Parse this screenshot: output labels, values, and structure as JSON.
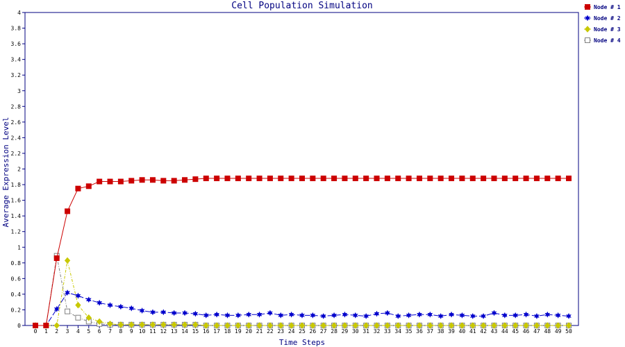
{
  "chart_data": {
    "type": "line",
    "title": "Cell Population Simulation",
    "xlabel": "Time Steps",
    "ylabel": "Average Expression Level",
    "xlim": [
      0,
      50
    ],
    "ylim": [
      0,
      4
    ],
    "yticks": [
      "0",
      "0.2",
      "0.4",
      "0.6",
      "0.8",
      "1",
      "1.2",
      "1.4",
      "1.6",
      "1.8",
      "2",
      "2.2",
      "2.4",
      "2.6",
      "2.8",
      "3",
      "3.2",
      "3.4",
      "3.6",
      "3.8",
      "4"
    ],
    "xticks": [
      "0",
      "1",
      "2",
      "3",
      "4",
      "5",
      "6",
      "7",
      "8",
      "9",
      "10",
      "11",
      "12",
      "13",
      "14",
      "15",
      "16",
      "17",
      "18",
      "19",
      "20",
      "21",
      "22",
      "23",
      "24",
      "25",
      "26",
      "27",
      "28",
      "29",
      "30",
      "31",
      "32",
      "33",
      "34",
      "35",
      "36",
      "37",
      "38",
      "39",
      "40",
      "41",
      "42",
      "43",
      "44",
      "45",
      "46",
      "47",
      "48",
      "49",
      "50"
    ],
    "grid": false,
    "legend_position": "right-top",
    "series": [
      {
        "name": "Node # 1",
        "color": "#cc0000",
        "marker": "filled-square",
        "dash": "solid",
        "values": [
          0,
          0,
          0.86,
          1.46,
          1.75,
          1.78,
          1.84,
          1.84,
          1.84,
          1.85,
          1.86,
          1.86,
          1.85,
          1.85,
          1.86,
          1.87,
          1.88,
          1.88,
          1.88,
          1.88,
          1.88,
          1.88,
          1.88,
          1.88,
          1.88,
          1.88,
          1.88,
          1.88,
          1.88,
          1.88,
          1.88,
          1.88,
          1.88,
          1.88,
          1.88,
          1.88,
          1.88,
          1.88,
          1.88,
          1.88,
          1.88,
          1.88,
          1.88,
          1.88,
          1.88,
          1.88,
          1.88,
          1.88,
          1.88,
          1.88,
          1.88
        ]
      },
      {
        "name": "Node # 2",
        "color": "#0000cc",
        "marker": "filled-star",
        "dash": "long-dash",
        "values": [
          0,
          0,
          0.21,
          0.42,
          0.38,
          0.33,
          0.29,
          0.26,
          0.24,
          0.22,
          0.19,
          0.17,
          0.17,
          0.16,
          0.16,
          0.15,
          0.13,
          0.14,
          0.13,
          0.13,
          0.14,
          0.14,
          0.16,
          0.13,
          0.14,
          0.13,
          0.13,
          0.12,
          0.13,
          0.14,
          0.13,
          0.12,
          0.15,
          0.16,
          0.12,
          0.13,
          0.14,
          0.14,
          0.12,
          0.14,
          0.13,
          0.12,
          0.12,
          0.16,
          0.13,
          0.13,
          0.14,
          0.12,
          0.14,
          0.13,
          0.12
        ]
      },
      {
        "name": "Node # 3",
        "color": "#c8c800",
        "marker": "filled-diamond",
        "dash": "dash-dot",
        "values": [
          0,
          0,
          0,
          0.83,
          0.26,
          0.1,
          0.05,
          0.02,
          0.01,
          0.01,
          0.01,
          0.01,
          0.01,
          0.01,
          0.01,
          0.01,
          0,
          0,
          0,
          0,
          0,
          0,
          0,
          0,
          0,
          0,
          0,
          0,
          0,
          0,
          0,
          0,
          0,
          0,
          0,
          0,
          0,
          0,
          0,
          0,
          0,
          0,
          0,
          0,
          0,
          0,
          0,
          0,
          0,
          0,
          0
        ]
      },
      {
        "name": "Node # 4",
        "color": "#808080",
        "marker": "open-square",
        "dash": "dash-dot",
        "values": [
          0,
          0,
          0.89,
          0.18,
          0.1,
          0.05,
          0.02,
          0.01,
          0.01,
          0.01,
          0.01,
          0.01,
          0.01,
          0.01,
          0.01,
          0.01,
          0,
          0,
          0,
          0,
          0,
          0,
          0,
          0,
          0,
          0,
          0,
          0,
          0,
          0,
          0,
          0,
          0,
          0,
          0,
          0,
          0,
          0,
          0,
          0,
          0,
          0,
          0,
          0,
          0,
          0,
          0,
          0,
          0,
          0,
          0
        ]
      }
    ]
  }
}
